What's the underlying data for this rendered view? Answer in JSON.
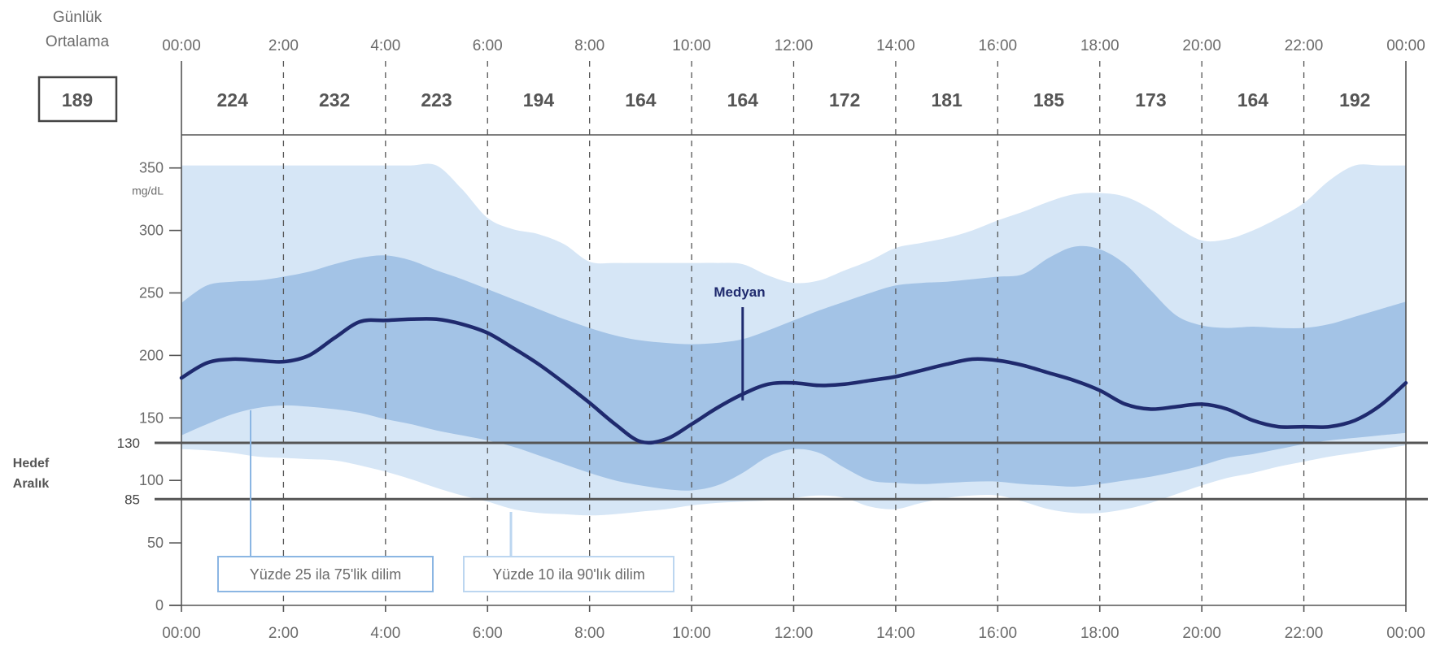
{
  "header": {
    "daily_avg_label_line1": "Günlük",
    "daily_avg_label_line2": "Ortalama",
    "overall_avg": "189"
  },
  "target_range": {
    "label_line1": "Hedef",
    "label_line2": "Aralık",
    "upper": 130,
    "lower": 85
  },
  "legend": {
    "iqr_label": "Yüzde 25 ila 75'lik dilim",
    "outer_label": "Yüzde 10 ila 90'lık dilim",
    "median_label": "Medyan"
  },
  "colors": {
    "outer_band": "#d6e6f6",
    "iqr_band": "#a3c3e6",
    "median_line": "#1f2a6e",
    "target_lines": "#555555",
    "grid": "#555555",
    "text": "#6b6b6b",
    "median_label": "#1f2a6e"
  },
  "chart_data": {
    "type": "area",
    "title": "",
    "xlabel": "",
    "ylabel": "mg/dL",
    "x_unit": "hours",
    "xlim": [
      0,
      24
    ],
    "ylim": [
      0,
      350
    ],
    "grid": "dashed vertical every 2 hours",
    "x_ticks": [
      "00:00",
      "2:00",
      "4:00",
      "6:00",
      "8:00",
      "10:00",
      "12:00",
      "14:00",
      "16:00",
      "18:00",
      "20:00",
      "22:00",
      "00:00"
    ],
    "y_ticks": [
      0,
      50,
      100,
      150,
      200,
      250,
      300,
      350
    ],
    "bin_averages": {
      "bins": [
        "00:00-2:00",
        "2:00-4:00",
        "4:00-6:00",
        "6:00-8:00",
        "8:00-10:00",
        "10:00-12:00",
        "12:00-14:00",
        "14:00-16:00",
        "16:00-18:00",
        "18:00-20:00",
        "20:00-22:00",
        "22:00-00:00"
      ],
      "values": [
        224,
        232,
        223,
        194,
        164,
        164,
        172,
        181,
        185,
        173,
        164,
        192
      ]
    },
    "series": [
      {
        "name": "Medyan",
        "x": [
          0,
          0.5,
          1,
          1.5,
          2,
          2.5,
          3,
          3.5,
          4,
          4.5,
          5,
          5.5,
          6,
          6.5,
          7,
          7.5,
          8,
          8.5,
          9,
          9.5,
          10,
          10.5,
          11,
          11.5,
          12,
          12.5,
          13,
          13.5,
          14,
          14.5,
          15,
          15.5,
          16,
          16.5,
          17,
          17.5,
          18,
          18.5,
          19,
          19.5,
          20,
          20.5,
          21,
          21.5,
          22,
          22.5,
          23,
          23.5,
          24
        ],
        "y": [
          182,
          194,
          197,
          196,
          195,
          200,
          214,
          227,
          228,
          229,
          229,
          225,
          218,
          206,
          193,
          178,
          162,
          145,
          131,
          133,
          145,
          158,
          169,
          177,
          178,
          176,
          177,
          180,
          183,
          188,
          193,
          197,
          196,
          192,
          186,
          180,
          172,
          161,
          157,
          159,
          161,
          157,
          148,
          143,
          143,
          143,
          148,
          160,
          178
        ]
      },
      {
        "name": "Yüzde 25 ila 75'lik dilim (üst)",
        "x": [
          0,
          0.5,
          1,
          1.5,
          2,
          2.5,
          3,
          3.5,
          4,
          4.5,
          5,
          5.5,
          6,
          6.5,
          7,
          7.5,
          8,
          8.5,
          9,
          9.5,
          10,
          10.5,
          11,
          11.5,
          12,
          12.5,
          13,
          13.5,
          14,
          14.5,
          15,
          15.5,
          16,
          16.5,
          17,
          17.5,
          18,
          18.5,
          19,
          19.5,
          20,
          20.5,
          21,
          21.5,
          22,
          22.5,
          23,
          23.5,
          24
        ],
        "y": [
          242,
          256,
          259,
          260,
          263,
          267,
          273,
          278,
          280,
          276,
          268,
          261,
          253,
          245,
          237,
          229,
          222,
          216,
          212,
          210,
          209,
          210,
          213,
          220,
          228,
          236,
          243,
          250,
          256,
          258,
          259,
          261,
          263,
          265,
          278,
          287,
          285,
          273,
          252,
          232,
          224,
          222,
          223,
          222,
          222,
          225,
          231,
          237,
          243
        ]
      },
      {
        "name": "Yüzde 25 ila 75'lik dilim (alt)",
        "x": [
          0,
          0.5,
          1,
          1.5,
          2,
          2.5,
          3,
          3.5,
          4,
          4.5,
          5,
          5.5,
          6,
          6.5,
          7,
          7.5,
          8,
          8.5,
          9,
          9.5,
          10,
          10.5,
          11,
          11.5,
          12,
          12.5,
          13,
          13.5,
          14,
          14.5,
          15,
          15.5,
          16,
          16.5,
          17,
          17.5,
          18,
          18.5,
          19,
          19.5,
          20,
          20.5,
          21,
          21.5,
          22,
          22.5,
          23,
          23.5,
          24
        ],
        "y": [
          136,
          145,
          153,
          158,
          160,
          159,
          157,
          154,
          149,
          145,
          140,
          136,
          132,
          127,
          120,
          113,
          106,
          100,
          96,
          93,
          92,
          96,
          106,
          119,
          125,
          122,
          110,
          100,
          98,
          97,
          98,
          99,
          99,
          97,
          96,
          95,
          97,
          100,
          103,
          107,
          112,
          118,
          121,
          125,
          129,
          132,
          134,
          136,
          138
        ]
      },
      {
        "name": "Yüzde 10 ila 90'lık dilim (üst)",
        "x": [
          0,
          0.5,
          1,
          1.5,
          2,
          2.5,
          3,
          3.5,
          4,
          4.5,
          5,
          5.5,
          6,
          6.5,
          7,
          7.5,
          8,
          8.5,
          9,
          9.5,
          10,
          10.5,
          11,
          11.5,
          12,
          12.5,
          13,
          13.5,
          14,
          14.5,
          15,
          15.5,
          16,
          16.5,
          17,
          17.5,
          18,
          18.5,
          19,
          19.5,
          20,
          20.5,
          21,
          21.5,
          22,
          22.5,
          23,
          23.5,
          24
        ],
        "y": [
          352,
          352,
          352,
          352,
          352,
          352,
          352,
          352,
          352,
          352,
          352,
          333,
          310,
          301,
          297,
          289,
          275,
          274,
          274,
          274,
          274,
          274,
          273,
          264,
          258,
          260,
          268,
          276,
          286,
          290,
          294,
          300,
          308,
          315,
          323,
          329,
          330,
          327,
          317,
          303,
          292,
          293,
          300,
          310,
          322,
          340,
          352,
          352,
          352
        ]
      },
      {
        "name": "Yüzde 10 ila 90'lık dilim (alt)",
        "x": [
          0,
          0.5,
          1,
          1.5,
          2,
          2.5,
          3,
          3.5,
          4,
          4.5,
          5,
          5.5,
          6,
          6.5,
          7,
          7.5,
          8,
          8.5,
          9,
          9.5,
          10,
          10.5,
          11,
          11.5,
          12,
          12.5,
          13,
          13.5,
          14,
          14.5,
          15,
          15.5,
          16,
          16.5,
          17,
          17.5,
          18,
          18.5,
          19,
          19.5,
          20,
          20.5,
          21,
          21.5,
          22,
          22.5,
          23,
          23.5,
          24
        ],
        "y": [
          125,
          124,
          122,
          119,
          118,
          117,
          116,
          112,
          107,
          101,
          94,
          88,
          83,
          77,
          74,
          73,
          72,
          73,
          75,
          77,
          80,
          82,
          83,
          84,
          86,
          88,
          86,
          79,
          77,
          82,
          86,
          88,
          88,
          83,
          77,
          74,
          74,
          77,
          82,
          89,
          96,
          102,
          106,
          111,
          115,
          119,
          122,
          125,
          128
        ]
      }
    ],
    "annotations": [
      "Medyan",
      "Yüzde 25 ila 75'lik dilim",
      "Yüzde 10 ila 90'lık dilim"
    ]
  }
}
